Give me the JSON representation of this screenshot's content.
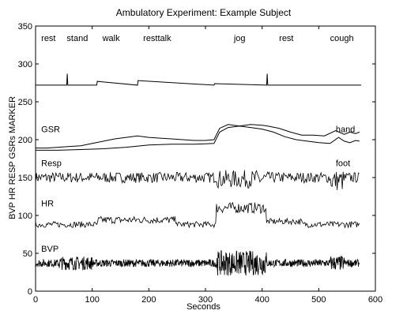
{
  "chart_data": {
    "type": "line",
    "title": "Ambulatory Experiment: Example Subject",
    "xlabel": "Seconds",
    "ylabel": "BVP HR RESP GSRs MARKER",
    "xlim": [
      0,
      600
    ],
    "ylim": [
      0,
      350
    ],
    "x_ticks": [
      0,
      100,
      200,
      300,
      400,
      500,
      600
    ],
    "y_ticks": [
      0,
      50,
      100,
      150,
      200,
      250,
      300,
      350
    ],
    "grid": false,
    "activity_labels": [
      {
        "text": "rest",
        "x": 10
      },
      {
        "text": "stand",
        "x": 55
      },
      {
        "text": "walk",
        "x": 118
      },
      {
        "text": "resttalk",
        "x": 190
      },
      {
        "text": "jog",
        "x": 350
      },
      {
        "text": "rest",
        "x": 430
      },
      {
        "text": "cough",
        "x": 520
      }
    ],
    "series_labels": [
      {
        "text": "GSR",
        "x": 10,
        "y": 210
      },
      {
        "text": "hand",
        "x": 530,
        "y": 210
      },
      {
        "text": "Resp",
        "x": 10,
        "y": 165
      },
      {
        "text": "foot",
        "x": 530,
        "y": 165
      },
      {
        "text": "HR",
        "x": 10,
        "y": 112
      },
      {
        "text": "BVP",
        "x": 10,
        "y": 52
      }
    ],
    "series": [
      {
        "key": "marker",
        "x": [
          0,
          55,
          56,
          57,
          108,
          109,
          180,
          181,
          315,
          316,
          408,
          409,
          410,
          575
        ],
        "y": [
          272,
          272,
          287,
          272,
          272,
          277,
          272,
          278,
          272,
          274,
          272,
          287,
          272,
          272
        ]
      },
      {
        "key": "gsr_hand",
        "x": [
          0,
          20,
          40,
          60,
          80,
          100,
          120,
          140,
          160,
          180,
          200,
          220,
          240,
          260,
          280,
          300,
          315,
          325,
          340,
          360,
          380,
          400,
          410,
          430,
          450,
          470,
          490,
          510,
          530,
          545,
          555,
          565,
          572
        ],
        "y": [
          189,
          189,
          190,
          191,
          192,
          195,
          198,
          201,
          203,
          205,
          203,
          202,
          201,
          200,
          199,
          199,
          200,
          215,
          220,
          218,
          220,
          219,
          218,
          215,
          210,
          206,
          206,
          205,
          212,
          207,
          210,
          208,
          210
        ]
      },
      {
        "key": "gsr_foot",
        "x": [
          0,
          40,
          80,
          120,
          160,
          200,
          240,
          280,
          315,
          325,
          340,
          360,
          380,
          400,
          420,
          440,
          460,
          480,
          500,
          520,
          535,
          545,
          555,
          565,
          572
        ],
        "y": [
          186,
          186,
          187,
          188,
          190,
          193,
          194,
          194,
          195,
          210,
          216,
          218,
          216,
          214,
          210,
          204,
          200,
          198,
          196,
          195,
          203,
          198,
          196,
          199,
          198
        ]
      }
    ]
  }
}
